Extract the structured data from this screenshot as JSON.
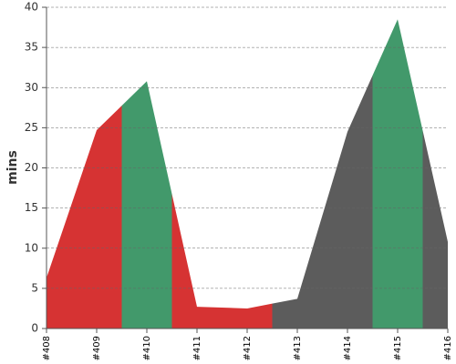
{
  "chart_data": {
    "type": "area",
    "y_label": "mins",
    "categories": [
      "#408",
      "#409",
      "#410",
      "#411",
      "#412",
      "#413",
      "#414",
      "#415",
      "#416"
    ],
    "values": [
      6.3,
      24.7,
      30.8,
      2.7,
      2.5,
      3.7,
      24.5,
      38.5,
      10.8
    ],
    "colors": [
      "#d63333",
      "#d63333",
      "#42996b",
      "#d63333",
      "#d63333",
      "#5c5c5c",
      "#5c5c5c",
      "#42996b",
      "#5c5c5c"
    ],
    "ylim": [
      0,
      40
    ],
    "yticks": [
      0,
      5,
      10,
      15,
      20,
      25,
      30,
      35,
      40
    ],
    "grid": true
  }
}
